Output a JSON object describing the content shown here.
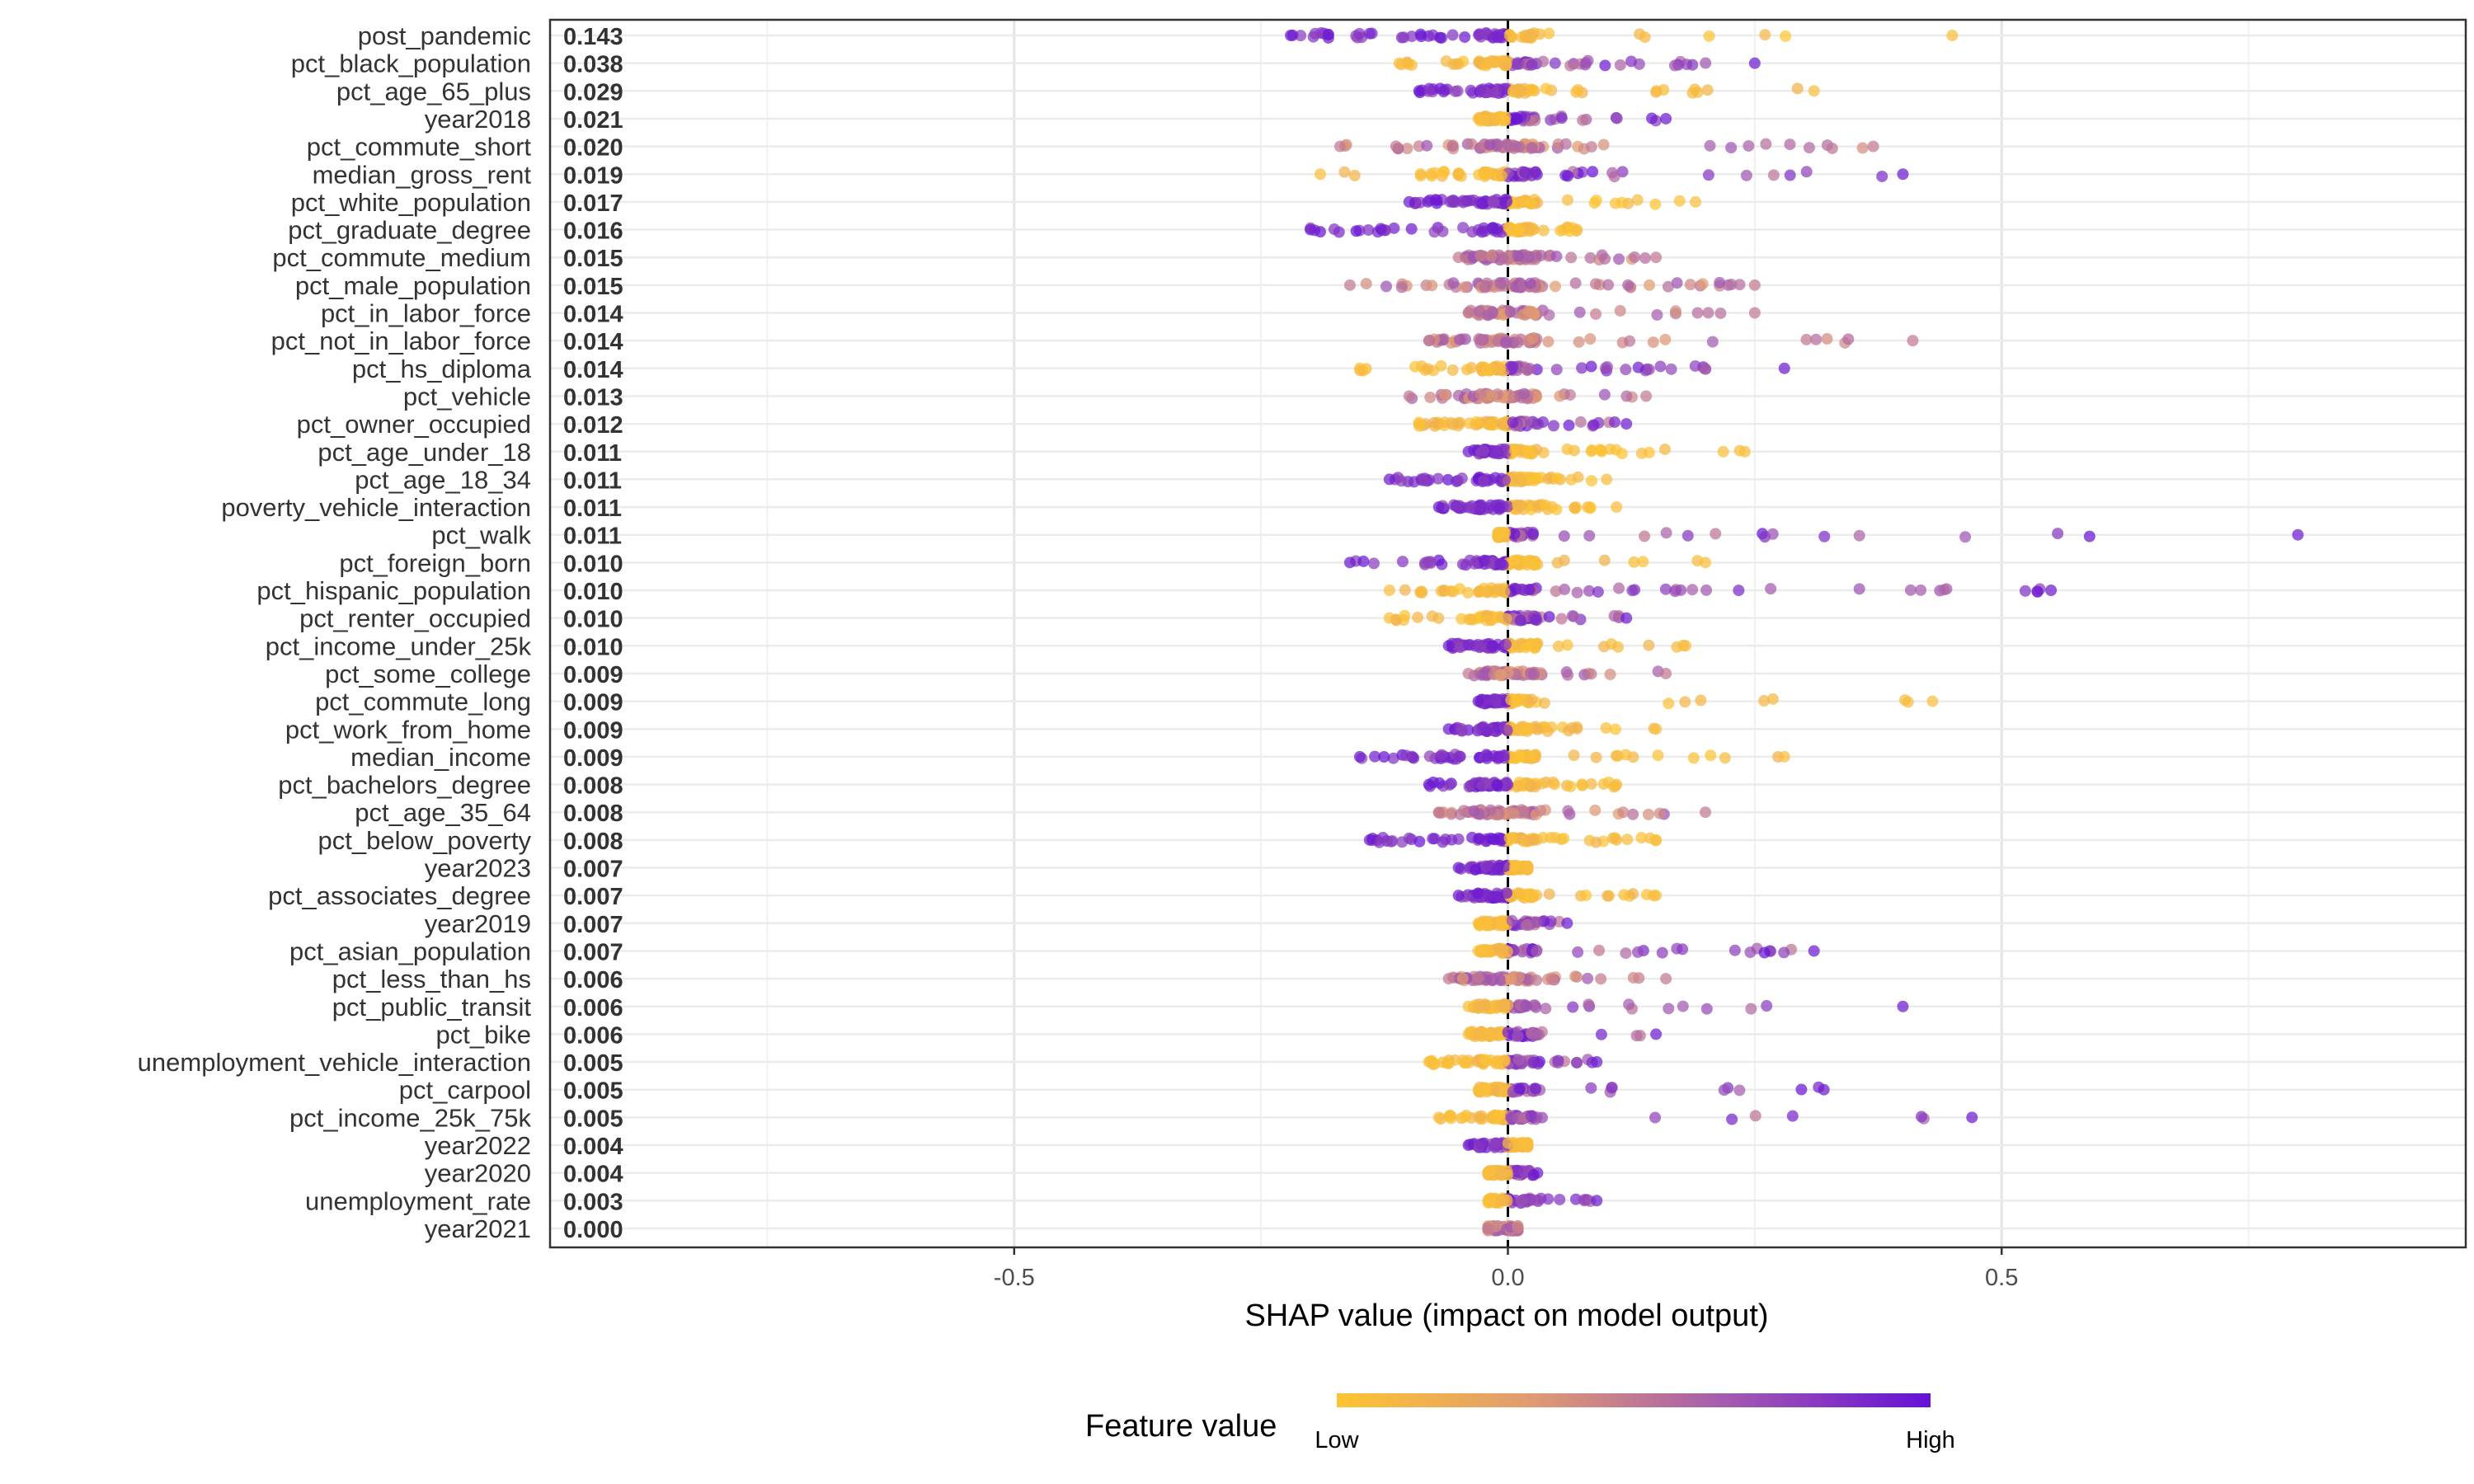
{
  "chart_data": {
    "type": "scatter",
    "subtype": "shap-beeswarm",
    "title": "",
    "xlabel": "SHAP value (impact on model output)",
    "ylabel": "",
    "xlim": [
      -0.97,
      0.97
    ],
    "x_ticks": [
      -0.5,
      0.0,
      0.5
    ],
    "x_tick_labels": [
      "-0.5",
      "0.0",
      "0.5"
    ],
    "grid": true,
    "zero_line": true,
    "legend": {
      "title": "Feature value",
      "placement": "bottom",
      "low_label": "Low",
      "high_label": "High",
      "low_color": "#fdc431",
      "high_color": "#6511d6"
    },
    "features": [
      {
        "name": "post_pandemic",
        "importance": "0.143",
        "min": -0.22,
        "max": 0.45,
        "low_side": 1
      },
      {
        "name": "pct_black_population",
        "importance": "0.038",
        "min": -0.11,
        "max": 0.25,
        "low_side": -1
      },
      {
        "name": "pct_age_65_plus",
        "importance": "0.029",
        "min": -0.09,
        "max": 0.31,
        "low_side": 1
      },
      {
        "name": "year2018",
        "importance": "0.021",
        "min": -0.03,
        "max": 0.16,
        "low_side": -1
      },
      {
        "name": "pct_commute_short",
        "importance": "0.020",
        "min": -0.17,
        "max": 0.37,
        "low_side": 0
      },
      {
        "name": "median_gross_rent",
        "importance": "0.019",
        "min": -0.19,
        "max": 0.4,
        "low_side": -1
      },
      {
        "name": "pct_white_population",
        "importance": "0.017",
        "min": -0.1,
        "max": 0.19,
        "low_side": 1
      },
      {
        "name": "pct_graduate_degree",
        "importance": "0.016",
        "min": -0.2,
        "max": 0.07,
        "low_side": 1
      },
      {
        "name": "pct_commute_medium",
        "importance": "0.015",
        "min": -0.05,
        "max": 0.15,
        "low_side": 0
      },
      {
        "name": "pct_male_population",
        "importance": "0.015",
        "min": -0.16,
        "max": 0.25,
        "low_side": 0
      },
      {
        "name": "pct_in_labor_force",
        "importance": "0.014",
        "min": -0.04,
        "max": 0.25,
        "low_side": 0
      },
      {
        "name": "pct_not_in_labor_force",
        "importance": "0.014",
        "min": -0.08,
        "max": 0.41,
        "low_side": 0
      },
      {
        "name": "pct_hs_diploma",
        "importance": "0.014",
        "min": -0.15,
        "max": 0.28,
        "low_side": -1
      },
      {
        "name": "pct_vehicle",
        "importance": "0.013",
        "min": -0.1,
        "max": 0.14,
        "low_side": 0
      },
      {
        "name": "pct_owner_occupied",
        "importance": "0.012",
        "min": -0.09,
        "max": 0.12,
        "low_side": -1
      },
      {
        "name": "pct_age_under_18",
        "importance": "0.011",
        "min": -0.04,
        "max": 0.24,
        "low_side": 1
      },
      {
        "name": "pct_age_18_34",
        "importance": "0.011",
        "min": -0.12,
        "max": 0.1,
        "low_side": 1
      },
      {
        "name": "poverty_vehicle_interaction",
        "importance": "0.011",
        "min": -0.07,
        "max": 0.11,
        "low_side": 1
      },
      {
        "name": "pct_walk",
        "importance": "0.011",
        "min": -0.01,
        "max": 0.8,
        "low_side": -1
      },
      {
        "name": "pct_foreign_born",
        "importance": "0.010",
        "min": -0.16,
        "max": 0.2,
        "low_side": 1
      },
      {
        "name": "pct_hispanic_population",
        "importance": "0.010",
        "min": -0.12,
        "max": 0.55,
        "low_side": -1
      },
      {
        "name": "pct_renter_occupied",
        "importance": "0.010",
        "min": -0.12,
        "max": 0.12,
        "low_side": -1
      },
      {
        "name": "pct_income_under_25k",
        "importance": "0.010",
        "min": -0.06,
        "max": 0.18,
        "low_side": 1
      },
      {
        "name": "pct_some_college",
        "importance": "0.009",
        "min": -0.04,
        "max": 0.16,
        "low_side": 0
      },
      {
        "name": "pct_commute_long",
        "importance": "0.009",
        "min": -0.03,
        "max": 0.43,
        "low_side": 1
      },
      {
        "name": "pct_work_from_home",
        "importance": "0.009",
        "min": -0.06,
        "max": 0.15,
        "low_side": 1
      },
      {
        "name": "median_income",
        "importance": "0.009",
        "min": -0.15,
        "max": 0.28,
        "low_side": 1
      },
      {
        "name": "pct_bachelors_degree",
        "importance": "0.008",
        "min": -0.08,
        "max": 0.11,
        "low_side": 1
      },
      {
        "name": "pct_age_35_64",
        "importance": "0.008",
        "min": -0.07,
        "max": 0.2,
        "low_side": 0
      },
      {
        "name": "pct_below_poverty",
        "importance": "0.008",
        "min": -0.14,
        "max": 0.15,
        "low_side": 1
      },
      {
        "name": "year2023",
        "importance": "0.007",
        "min": -0.05,
        "max": 0.02,
        "low_side": 1
      },
      {
        "name": "pct_associates_degree",
        "importance": "0.007",
        "min": -0.05,
        "max": 0.15,
        "low_side": 1
      },
      {
        "name": "year2019",
        "importance": "0.007",
        "min": -0.03,
        "max": 0.06,
        "low_side": -1
      },
      {
        "name": "pct_asian_population",
        "importance": "0.007",
        "min": -0.03,
        "max": 0.31,
        "low_side": -1
      },
      {
        "name": "pct_less_than_hs",
        "importance": "0.006",
        "min": -0.06,
        "max": 0.16,
        "low_side": 0
      },
      {
        "name": "pct_public_transit",
        "importance": "0.006",
        "min": -0.04,
        "max": 0.4,
        "low_side": -1
      },
      {
        "name": "pct_bike",
        "importance": "0.006",
        "min": -0.04,
        "max": 0.15,
        "low_side": -1
      },
      {
        "name": "unemployment_vehicle_interaction",
        "importance": "0.005",
        "min": -0.08,
        "max": 0.09,
        "low_side": -1
      },
      {
        "name": "pct_carpool",
        "importance": "0.005",
        "min": -0.03,
        "max": 0.32,
        "low_side": -1
      },
      {
        "name": "pct_income_25k_75k",
        "importance": "0.005",
        "min": -0.07,
        "max": 0.47,
        "low_side": -1
      },
      {
        "name": "year2022",
        "importance": "0.004",
        "min": -0.04,
        "max": 0.02,
        "low_side": 1
      },
      {
        "name": "year2020",
        "importance": "0.004",
        "min": -0.02,
        "max": 0.03,
        "low_side": -1
      },
      {
        "name": "unemployment_rate",
        "importance": "0.003",
        "min": -0.02,
        "max": 0.09,
        "low_side": -1
      },
      {
        "name": "year2021",
        "importance": "0.000",
        "min": -0.02,
        "max": 0.01,
        "low_side": 0
      }
    ]
  }
}
